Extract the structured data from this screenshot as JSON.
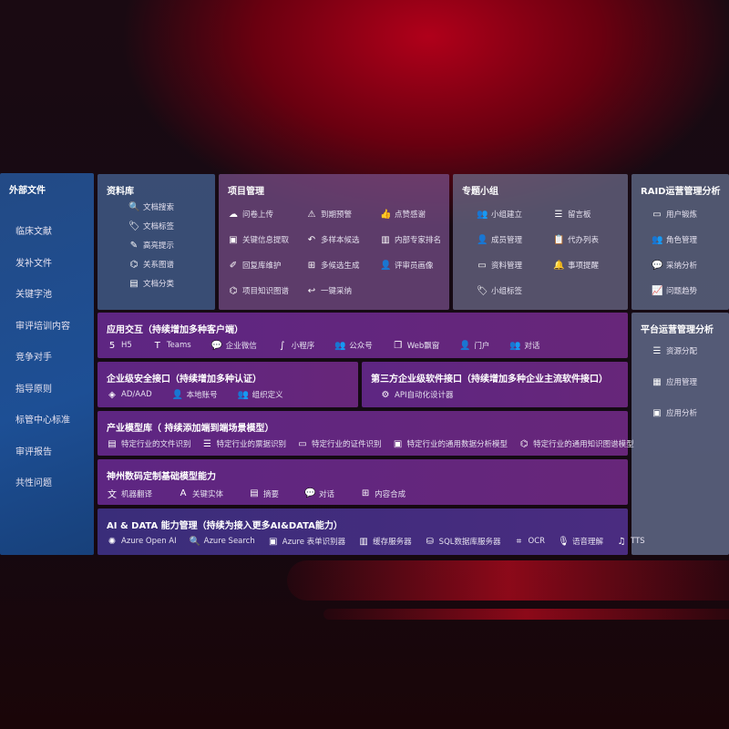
{
  "external_files": {
    "title": "外部文件",
    "items": [
      "临床文献",
      "发补文件",
      "关键字池",
      "审评培训内容",
      "竞争对手",
      "指导原则",
      "标管中心标准",
      "审评报告",
      "共性问题"
    ]
  },
  "library": {
    "title": "资料库",
    "items": [
      {
        "icon": "file-search-icon",
        "glyph": "🔍",
        "label": "文档搜索"
      },
      {
        "icon": "tag-icon",
        "glyph": "🏷",
        "label": "文档标签"
      },
      {
        "icon": "highlight-icon",
        "glyph": "✎",
        "label": "高亮提示"
      },
      {
        "icon": "graph-icon",
        "glyph": "⌬",
        "label": "关系图谱"
      },
      {
        "icon": "document-icon",
        "glyph": "▤",
        "label": "文档分类"
      }
    ]
  },
  "project": {
    "title": "项目管理",
    "items": [
      {
        "icon": "cloud-upload-icon",
        "glyph": "☁",
        "label": "问卷上传"
      },
      {
        "icon": "alarm-icon",
        "glyph": "⚠",
        "label": "到期预警"
      },
      {
        "icon": "thumbs-up-icon",
        "glyph": "👍",
        "label": "点赞感谢"
      },
      {
        "icon": "extract-icon",
        "glyph": "▣",
        "label": "关键信息提取"
      },
      {
        "icon": "reply-all-icon",
        "glyph": "↶",
        "label": "多样本候选"
      },
      {
        "icon": "ranking-icon",
        "glyph": "▥",
        "label": "内部专家排名"
      },
      {
        "icon": "edit-icon",
        "glyph": "✐",
        "label": "回复库维护"
      },
      {
        "icon": "puzzle-icon",
        "glyph": "⊞",
        "label": "多候选生成"
      },
      {
        "icon": "user-icon",
        "glyph": "👤",
        "label": "评审员画像"
      },
      {
        "icon": "graph-icon",
        "glyph": "⌬",
        "label": "项目知识图谱"
      },
      {
        "icon": "reply-icon",
        "glyph": "↩",
        "label": "一键采纳"
      }
    ]
  },
  "topic_group": {
    "title": "专题小组",
    "items": [
      {
        "icon": "group-icon",
        "glyph": "👥",
        "label": "小组建立"
      },
      {
        "icon": "bbs-icon",
        "glyph": "☰",
        "label": "留言板"
      },
      {
        "icon": "member-add-icon",
        "glyph": "👤",
        "label": "成员管理"
      },
      {
        "icon": "clipboard-icon",
        "glyph": "📋",
        "label": "代办列表"
      },
      {
        "icon": "folder-icon",
        "glyph": "▭",
        "label": "资料管理"
      },
      {
        "icon": "bell-icon",
        "glyph": "🔔",
        "label": "事项提醒"
      },
      {
        "icon": "tag-icon",
        "glyph": "🏷",
        "label": "小组标签"
      }
    ]
  },
  "raid": {
    "title": "RAID运营管理分析",
    "items": [
      {
        "icon": "id-card-icon",
        "glyph": "▭",
        "label": "用户锻炼"
      },
      {
        "icon": "group-icon",
        "glyph": "👥",
        "label": "角色管理"
      },
      {
        "icon": "qa-icon",
        "glyph": "💬",
        "label": "采纳分析"
      },
      {
        "icon": "trend-icon",
        "glyph": "📈",
        "label": "问题趋势"
      }
    ]
  },
  "platform": {
    "title": "平台运营管理分析",
    "items": [
      {
        "icon": "checklist-icon",
        "glyph": "☰",
        "label": "资源分配"
      },
      {
        "icon": "apps-icon",
        "glyph": "▦",
        "label": "应用管理"
      },
      {
        "icon": "analytics-icon",
        "glyph": "▣",
        "label": "应用分析"
      }
    ]
  },
  "app_interaction": {
    "title": "应用交互（持续增加多种客户端）",
    "items": [
      {
        "icon": "html5-icon",
        "glyph": "5",
        "label": "H5"
      },
      {
        "icon": "teams-icon",
        "glyph": "T",
        "label": "Teams"
      },
      {
        "icon": "wecom-icon",
        "glyph": "💬",
        "label": "企业微信"
      },
      {
        "icon": "miniprogram-icon",
        "glyph": "∫",
        "label": "小程序"
      },
      {
        "icon": "public-account-icon",
        "glyph": "👥",
        "label": "公众号"
      },
      {
        "icon": "window-icon",
        "glyph": "❐",
        "label": "Web飘窗"
      },
      {
        "icon": "portal-icon",
        "glyph": "👤",
        "label": "门户"
      },
      {
        "icon": "chat-icon",
        "glyph": "👥",
        "label": "对话"
      }
    ]
  },
  "security": {
    "title": "企业级安全接口（持续增加多种认证）",
    "items": [
      {
        "icon": "ad-icon",
        "glyph": "◈",
        "label": "AD/AAD"
      },
      {
        "icon": "local-account-icon",
        "glyph": "👤",
        "label": "本地账号"
      },
      {
        "icon": "org-icon",
        "glyph": "👥",
        "label": "组织定义"
      }
    ]
  },
  "third_party": {
    "title": "第三方企业级软件接口（持续增加多种企业主流软件接口）",
    "items": [
      {
        "icon": "api-gear-icon",
        "glyph": "⚙",
        "label": "API自动化设计器"
      }
    ]
  },
  "industry": {
    "title": "产业模型库（ 持续添加端到端场景模型）",
    "items": [
      {
        "icon": "file-icon",
        "glyph": "▤",
        "label": "特定行业的文件识别"
      },
      {
        "icon": "receipt-icon",
        "glyph": "☰",
        "label": "特定行业的票据识别"
      },
      {
        "icon": "id-card-icon",
        "glyph": "▭",
        "label": "特定行业的证件识别"
      },
      {
        "icon": "chart-icon",
        "glyph": "▣",
        "label": "特定行业的通用数据分析模型"
      },
      {
        "icon": "graph-icon",
        "glyph": "⌬",
        "label": "特定行业的通用知识图谱模型"
      }
    ]
  },
  "foundation": {
    "title": "神州数码定制基础模型能力",
    "items": [
      {
        "icon": "translate-icon",
        "glyph": "文",
        "label": "机器翻译"
      },
      {
        "icon": "entity-icon",
        "glyph": "A",
        "label": "关键实体"
      },
      {
        "icon": "summary-icon",
        "glyph": "▤",
        "label": "摘要"
      },
      {
        "icon": "chat-bubble-icon",
        "glyph": "💬",
        "label": "对话"
      },
      {
        "icon": "puzzle-icon",
        "glyph": "⊞",
        "label": "内容合成"
      }
    ]
  },
  "ai_data": {
    "title": "AI & DATA 能力管理（持续为接入更多AI&DATA能力）",
    "items": [
      {
        "icon": "openai-icon",
        "glyph": "✺",
        "label": "Azure Open AI"
      },
      {
        "icon": "search-doc-icon",
        "glyph": "🔍",
        "label": "Azure Search"
      },
      {
        "icon": "form-recognizer-icon",
        "glyph": "▣",
        "label": "Azure 表单识别器"
      },
      {
        "icon": "cache-server-icon",
        "glyph": "▥",
        "label": "缓存服务器"
      },
      {
        "icon": "database-icon",
        "glyph": "⛁",
        "label": "SQL数据库服务器"
      },
      {
        "icon": "ocr-icon",
        "glyph": "⌗",
        "label": "OCR"
      },
      {
        "icon": "speech-icon",
        "glyph": "🎙",
        "label": "语音理解"
      },
      {
        "icon": "tts-icon",
        "glyph": "♫",
        "label": "TTS"
      }
    ]
  }
}
